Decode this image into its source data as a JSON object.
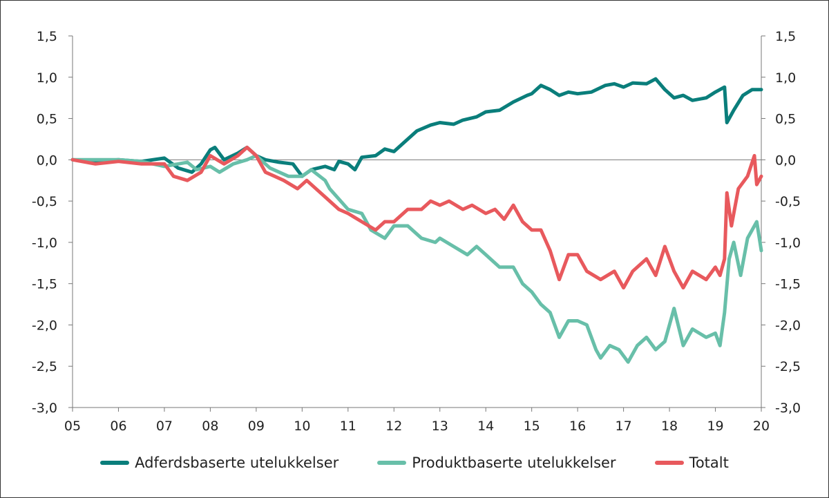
{
  "chart_data": {
    "type": "line",
    "title": "",
    "xlabel": "",
    "ylabel": "",
    "xlim": [
      2005,
      2020
    ],
    "ylim": [
      -3.0,
      1.5
    ],
    "x_tick_labels": [
      "05",
      "06",
      "07",
      "08",
      "09",
      "10",
      "11",
      "12",
      "13",
      "14",
      "15",
      "16",
      "17",
      "18",
      "19",
      "20"
    ],
    "y_tick_labels": [
      "1,5",
      "1,0",
      "0,5",
      "0,0",
      "-0,5",
      "-1,0",
      "-1,5",
      "-2,0",
      "-2,5",
      "-3,0"
    ],
    "y_ticks": [
      1.5,
      1.0,
      0.5,
      0.0,
      -0.5,
      -1.0,
      -1.5,
      -2.0,
      -2.5,
      -3.0
    ],
    "dual_y_axis": true,
    "zero_line": true,
    "grid": false,
    "legend_position": "bottom",
    "series": [
      {
        "name": "Adferdsbaserte utelukkelser",
        "color": "#0a7e7b",
        "x": [
          2005,
          2005.5,
          2006,
          2006.5,
          2007,
          2007.3,
          2007.6,
          2007.8,
          2008,
          2008.1,
          2008.3,
          2008.6,
          2008.8,
          2009,
          2009.2,
          2009.5,
          2009.8,
          2010,
          2010.2,
          2010.5,
          2010.7,
          2010.8,
          2011,
          2011.15,
          2011.3,
          2011.6,
          2011.8,
          2012,
          2012.2,
          2012.5,
          2012.8,
          2013,
          2013.3,
          2013.5,
          2013.8,
          2014,
          2014.3,
          2014.6,
          2014.9,
          2015,
          2015.2,
          2015.4,
          2015.6,
          2015.8,
          2016,
          2016.3,
          2016.6,
          2016.8,
          2017,
          2017.2,
          2017.5,
          2017.7,
          2017.9,
          2018.1,
          2018.3,
          2018.5,
          2018.8,
          2019,
          2019.2,
          2019.25,
          2019.4,
          2019.6,
          2019.8,
          2020
        ],
        "y": [
          0,
          -0.02,
          0,
          -0.02,
          0.02,
          -0.1,
          -0.15,
          -0.05,
          0.12,
          0.15,
          0.0,
          0.08,
          0.15,
          0.05,
          0.0,
          -0.03,
          -0.05,
          -0.2,
          -0.12,
          -0.08,
          -0.12,
          -0.02,
          -0.05,
          -0.12,
          0.03,
          0.05,
          0.13,
          0.1,
          0.2,
          0.35,
          0.42,
          0.45,
          0.43,
          0.48,
          0.52,
          0.58,
          0.6,
          0.7,
          0.78,
          0.8,
          0.9,
          0.85,
          0.78,
          0.82,
          0.8,
          0.82,
          0.9,
          0.92,
          0.88,
          0.93,
          0.92,
          0.98,
          0.85,
          0.75,
          0.78,
          0.72,
          0.75,
          0.82,
          0.88,
          0.45,
          0.6,
          0.78,
          0.85,
          0.85
        ]
      },
      {
        "name": "Produktbaserte utelukkelser",
        "color": "#68bfa9",
        "x": [
          2005,
          2006,
          2006.5,
          2007,
          2007.3,
          2007.5,
          2007.7,
          2008,
          2008.2,
          2008.5,
          2008.8,
          2009,
          2009.3,
          2009.7,
          2010,
          2010.2,
          2010.5,
          2010.6,
          2011,
          2011.3,
          2011.5,
          2011.8,
          2012,
          2012.3,
          2012.6,
          2012.9,
          2013,
          2013.3,
          2013.6,
          2013.8,
          2014,
          2014.3,
          2014.6,
          2014.8,
          2015,
          2015.2,
          2015.4,
          2015.6,
          2015.8,
          2016,
          2016.2,
          2016.4,
          2016.5,
          2016.7,
          2016.9,
          2017.1,
          2017.3,
          2017.5,
          2017.7,
          2017.9,
          2018.1,
          2018.3,
          2018.5,
          2018.8,
          2019,
          2019.1,
          2019.2,
          2019.3,
          2019.4,
          2019.55,
          2019.7,
          2019.9,
          2020
        ],
        "y": [
          0,
          0,
          -0.02,
          -0.08,
          -0.05,
          -0.03,
          -0.12,
          -0.08,
          -0.15,
          -0.05,
          0.0,
          0.05,
          -0.1,
          -0.2,
          -0.2,
          -0.12,
          -0.25,
          -0.35,
          -0.6,
          -0.65,
          -0.85,
          -0.95,
          -0.8,
          -0.8,
          -0.95,
          -1.0,
          -0.95,
          -1.05,
          -1.15,
          -1.05,
          -1.15,
          -1.3,
          -1.3,
          -1.5,
          -1.6,
          -1.75,
          -1.85,
          -2.15,
          -1.95,
          -1.95,
          -2.0,
          -2.3,
          -2.4,
          -2.25,
          -2.3,
          -2.45,
          -2.25,
          -2.15,
          -2.3,
          -2.2,
          -1.8,
          -2.25,
          -2.05,
          -2.15,
          -2.1,
          -2.25,
          -1.85,
          -1.2,
          -1.0,
          -1.4,
          -0.95,
          -0.75,
          -1.1
        ]
      },
      {
        "name": "Totalt",
        "color": "#e8595d",
        "x": [
          2005,
          2005.5,
          2006,
          2006.5,
          2007,
          2007.2,
          2007.5,
          2007.8,
          2008,
          2008.3,
          2008.6,
          2008.8,
          2009,
          2009.2,
          2009.4,
          2009.6,
          2009.9,
          2010.1,
          2010.3,
          2010.5,
          2010.8,
          2011,
          2011.3,
          2011.6,
          2011.8,
          2012,
          2012.3,
          2012.6,
          2012.8,
          2013,
          2013.2,
          2013.5,
          2013.7,
          2014,
          2014.2,
          2014.4,
          2014.6,
          2014.8,
          2015,
          2015.2,
          2015.4,
          2015.6,
          2015.8,
          2016,
          2016.2,
          2016.5,
          2016.8,
          2017,
          2017.2,
          2017.5,
          2017.7,
          2017.9,
          2018.1,
          2018.3,
          2018.5,
          2018.8,
          2019,
          2019.1,
          2019.2,
          2019.25,
          2019.35,
          2019.5,
          2019.7,
          2019.85,
          2019.9,
          2020
        ],
        "y": [
          0,
          -0.05,
          -0.02,
          -0.05,
          -0.05,
          -0.2,
          -0.25,
          -0.15,
          0.05,
          -0.05,
          0.05,
          0.15,
          0.05,
          -0.15,
          -0.2,
          -0.25,
          -0.35,
          -0.25,
          -0.35,
          -0.45,
          -0.6,
          -0.65,
          -0.75,
          -0.85,
          -0.75,
          -0.75,
          -0.6,
          -0.6,
          -0.5,
          -0.55,
          -0.5,
          -0.6,
          -0.55,
          -0.65,
          -0.6,
          -0.72,
          -0.55,
          -0.75,
          -0.85,
          -0.85,
          -1.1,
          -1.45,
          -1.15,
          -1.15,
          -1.35,
          -1.45,
          -1.35,
          -1.55,
          -1.35,
          -1.2,
          -1.4,
          -1.05,
          -1.35,
          -1.55,
          -1.35,
          -1.45,
          -1.3,
          -1.4,
          -1.2,
          -0.4,
          -0.8,
          -0.35,
          -0.2,
          0.05,
          -0.3,
          -0.2
        ]
      }
    ]
  }
}
